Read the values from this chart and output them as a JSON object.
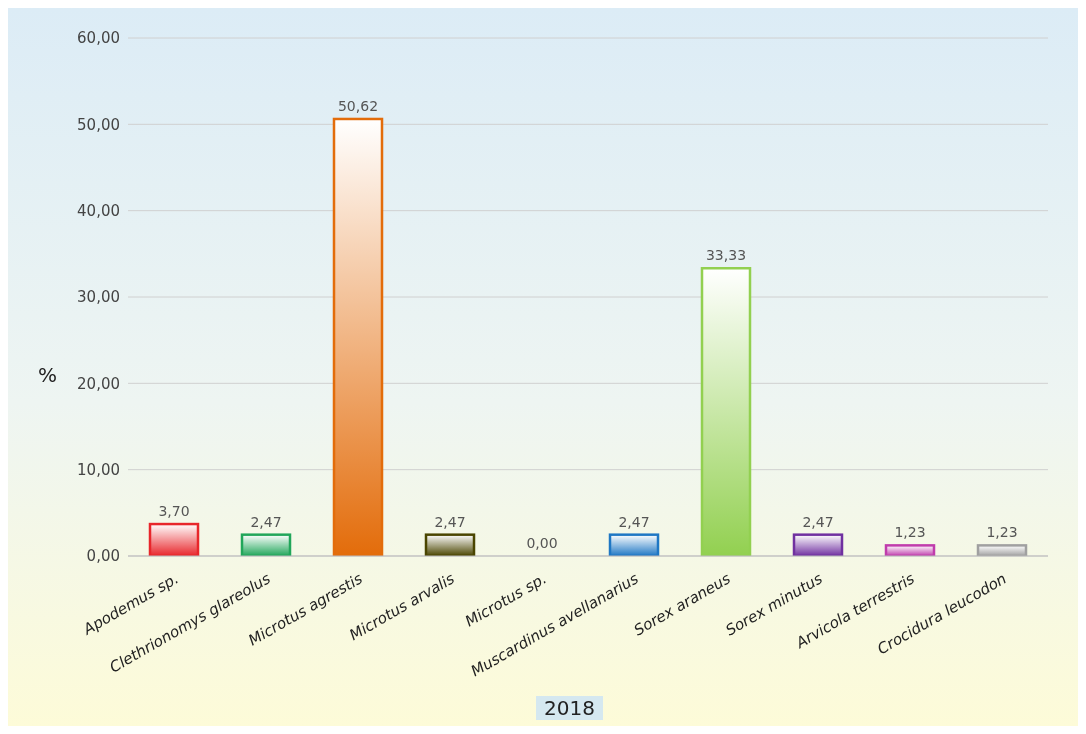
{
  "chart_data": {
    "type": "bar",
    "xlabel": "2018",
    "ylabel": "%",
    "categories": [
      "Apodemus sp.",
      "Clethrionomys glareolus",
      "Microtus agrestis",
      "Microtus arvalis",
      "Microtus sp.",
      "Muscardinus avellanarius",
      "Sorex araneus",
      "Sorex minutus",
      "Arvicola terrestris",
      "Crocidura leucodon"
    ],
    "values": [
      3.7,
      2.47,
      50.62,
      2.47,
      0.0,
      2.47,
      33.33,
      2.47,
      1.23,
      1.23
    ],
    "value_labels": [
      "3,70",
      "2,47",
      "50,62",
      "2,47",
      "0,00",
      "2,47",
      "33,33",
      "2,47",
      "1,23",
      "1,23"
    ],
    "colors": [
      "#e8262b",
      "#21a65a",
      "#e36c0a",
      "#4a4500",
      "#7f7f7f",
      "#1f77c4",
      "#92d050",
      "#7030a0",
      "#c03cac",
      "#a0a0a0"
    ],
    "ylim": [
      0,
      60
    ],
    "yticks": [
      {
        "value": 0,
        "label": "0,00"
      },
      {
        "value": 10,
        "label": "10,00"
      },
      {
        "value": 20,
        "label": "20,00"
      },
      {
        "value": 30,
        "label": "30,00"
      },
      {
        "value": 40,
        "label": "40,00"
      },
      {
        "value": 50,
        "label": "50,00"
      },
      {
        "value": 60,
        "label": "60,00"
      }
    ],
    "grid": "y"
  }
}
